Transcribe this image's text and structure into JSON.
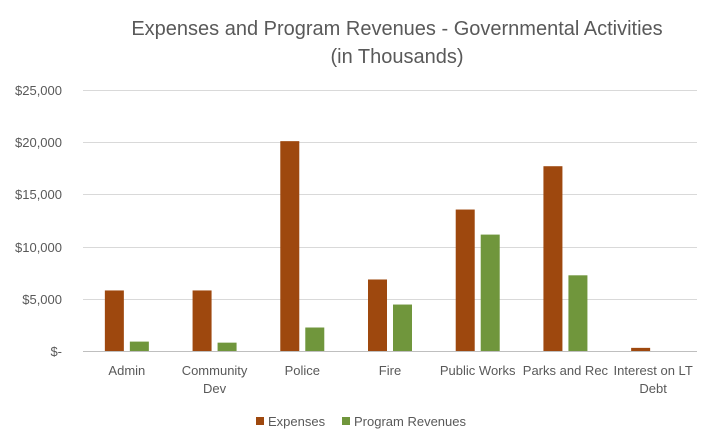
{
  "chart_data": {
    "type": "bar",
    "title": [
      "Expenses and Program Revenues - Governmental Activities",
      "(in Thousands)"
    ],
    "categories": [
      [
        "Admin"
      ],
      [
        "Community",
        "Dev"
      ],
      [
        "Police"
      ],
      [
        "Fire"
      ],
      [
        "Public Works"
      ],
      [
        "Parks and Rec"
      ],
      [
        "Interest on LT",
        "Debt"
      ]
    ],
    "series": [
      {
        "name": "Expenses",
        "color": "#9E480E",
        "values": [
          5800,
          5800,
          20100,
          6850,
          13550,
          17700,
          300
        ]
      },
      {
        "name": "Program Revenues",
        "color": "#70963C",
        "values": [
          900,
          800,
          2250,
          4450,
          11150,
          7250,
          0
        ]
      }
    ],
    "ylim": [
      0,
      25000
    ],
    "yticks": [
      0,
      5000,
      10000,
      15000,
      20000,
      25000
    ],
    "ytick_labels": [
      "$-",
      "$5,000",
      "$10,000",
      "$15,000",
      "$20,000",
      "$25,000"
    ],
    "xlabel": "",
    "ylabel": "",
    "grid": true,
    "legend_position": "bottom"
  }
}
